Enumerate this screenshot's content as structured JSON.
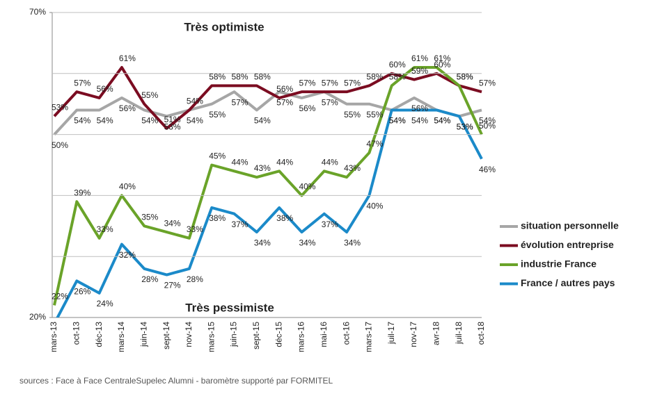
{
  "chart_data": {
    "type": "line",
    "categories": [
      "mars-13",
      "oct-13",
      "déc-13",
      "mars-14",
      "juin-14",
      "sept-14",
      "nov-14",
      "mars-15",
      "juin-15",
      "sept-15",
      "déc-15",
      "mars-16",
      "mai-16",
      "oct-16",
      "mars-17",
      "juil-17",
      "nov-17",
      "avr-18",
      "juil-18",
      "oct-18"
    ],
    "series": [
      {
        "name": "situation personnelle",
        "color": "#a6a6a6",
        "values": [
          50,
          54,
          54,
          56,
          54,
          53,
          54,
          55,
          57,
          54,
          57,
          56,
          57,
          55,
          55,
          54,
          56,
          54,
          53,
          54
        ],
        "value_labels": [
          "50%",
          "54%",
          "54%",
          "56%",
          "54%",
          "53%",
          "54%",
          "55%",
          "57%",
          "54%",
          "57%",
          "56%",
          "57%",
          "55%",
          "55%",
          "54%",
          "56%",
          "54%",
          "53%",
          "54%"
        ]
      },
      {
        "name": "évolution entreprise",
        "color": "#7b0c21",
        "values": [
          53,
          57,
          56,
          61,
          55,
          51,
          54,
          58,
          58,
          58,
          56,
          57,
          57,
          57,
          58,
          60,
          59,
          60,
          58,
          57
        ],
        "value_labels": [
          "53%",
          "57%",
          "56%",
          "61%",
          "55%",
          "51%",
          "54%",
          "58%",
          "58%",
          "58%",
          "56%",
          "57%",
          "57%",
          "57%",
          "58%",
          "60%",
          "59%",
          "60%",
          "58%",
          "57%"
        ]
      },
      {
        "name": "industrie France",
        "color": "#6aa329",
        "values": [
          22,
          39,
          33,
          40,
          35,
          34,
          33,
          45,
          44,
          43,
          44,
          40,
          44,
          43,
          47,
          58,
          61,
          61,
          58,
          50
        ],
        "value_labels": [
          "22%",
          "39%",
          "33%",
          "40%",
          "35%",
          "34%",
          "33%",
          "45%",
          "44%",
          "43%",
          "44%",
          "40%",
          "44%",
          "43%",
          "47%",
          "58%",
          "61%",
          "61%",
          "58%",
          "50%"
        ]
      },
      {
        "name": "France / autres pays",
        "color": "#1b8ac9",
        "values": [
          19,
          26,
          24,
          32,
          28,
          27,
          28,
          38,
          37,
          34,
          38,
          34,
          37,
          34,
          40,
          54,
          54,
          54,
          53,
          46
        ],
        "value_labels": [
          null,
          "26%",
          "24%",
          "32%",
          "28%",
          "27%",
          "28%",
          "38%",
          "37%",
          "34%",
          "38%",
          "34%",
          "37%",
          "34%",
          "40%",
          "54%",
          "54%",
          "54%",
          "53%",
          "46%"
        ]
      }
    ],
    "ylim": [
      20,
      70
    ],
    "yticks": [
      {
        "value": 20,
        "label": "20%"
      },
      {
        "value": 70,
        "label": "70%"
      }
    ],
    "gridlines": [
      30,
      40,
      50,
      60,
      70
    ],
    "grid": true,
    "legend": "right",
    "annotations": [
      {
        "text": "Très optimiste",
        "color": "#3aa31a"
      },
      {
        "text": "Très pessimiste",
        "color": "#7b0c21"
      }
    ],
    "source": "sources : Face à Face CentraleSupelec Alumni - baromètre supporté par FORMITEL"
  }
}
